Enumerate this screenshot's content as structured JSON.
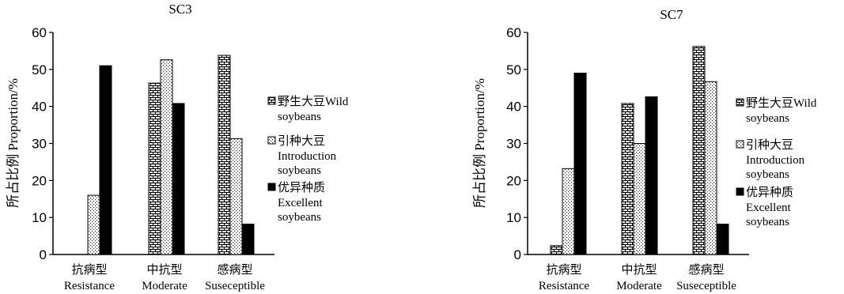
{
  "chart_data": [
    {
      "type": "bar",
      "title": "SC3",
      "ylabel": "所占比例 Proportion/%",
      "ylim": [
        0,
        60
      ],
      "yticks": [
        "0",
        "10",
        "20",
        "30",
        "40",
        "50",
        "60"
      ],
      "categories": [
        {
          "cn": "抗病型",
          "en": "Resistance"
        },
        {
          "cn": "中抗型",
          "en": "Moderate"
        },
        {
          "cn": "感病型",
          "en": "Suseceptible"
        }
      ],
      "series": [
        {
          "name": "野生大豆Wild soybeans",
          "legend_cn": "野生大豆Wild",
          "legend_en": "soybeans",
          "values": [
            0,
            46.3,
            53.8
          ]
        },
        {
          "name": "引种大豆 Introduction soybeans",
          "legend_cn": "引种大豆",
          "legend_en": "Introduction",
          "legend_en2": "soybeans",
          "values": [
            16,
            52.6,
            31.3
          ]
        },
        {
          "name": "优异种质 Excellent soybeans",
          "legend_cn": "优异种质",
          "legend_en": "Excellent",
          "legend_en2": "soybeans",
          "values": [
            51,
            40.8,
            8.2
          ]
        }
      ]
    },
    {
      "type": "bar",
      "title": "SC7",
      "ylabel": "所占比例 Proportion/%",
      "ylim": [
        0,
        60
      ],
      "yticks": [
        "0",
        "10",
        "20",
        "30",
        "40",
        "50",
        "60"
      ],
      "categories": [
        {
          "cn": "抗病型",
          "en": "Resistance"
        },
        {
          "cn": "中抗型",
          "en": "Moderate"
        },
        {
          "cn": "感病型",
          "en": "Suseceptible"
        }
      ],
      "series": [
        {
          "name": "野生大豆Wild soybeans",
          "legend_cn": "野生大豆Wild",
          "legend_en": "soybeans",
          "values": [
            2.4,
            40.8,
            56.2
          ]
        },
        {
          "name": "引种大豆 Introduction soybeans",
          "legend_cn": "引种大豆",
          "legend_en": "Introduction",
          "legend_en2": "soybeans",
          "values": [
            23.2,
            30,
            46.7
          ]
        },
        {
          "name": "优异种质 Excellent soybeans",
          "legend_cn": "优异种质",
          "legend_en": "Excellent",
          "legend_en2": "soybeans",
          "values": [
            49,
            42.6,
            8.2
          ]
        }
      ]
    }
  ]
}
